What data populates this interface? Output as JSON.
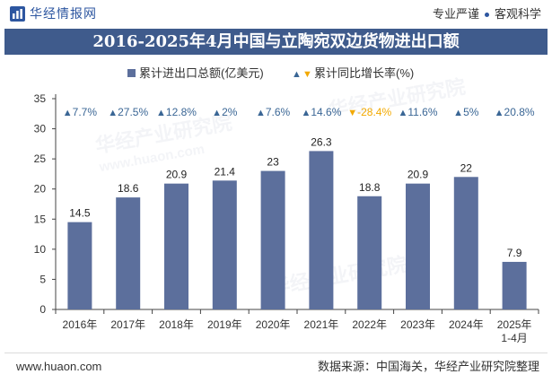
{
  "header": {
    "brand_name": "华经情报网",
    "slogan_left": "专业严谨",
    "slogan_right": "客观科学",
    "logo_icon": "huajing-logo-icon"
  },
  "colors": {
    "title_bar": "#3f5b8c",
    "brand": "#2d56a0"
  },
  "chart_data": {
    "type": "bar",
    "title": "2016-2025年4月中国与立陶宛双边货物进出口额",
    "xlabel": "",
    "ylabel": "",
    "categories": [
      "2016年",
      "2017年",
      "2018年",
      "2019年",
      "2020年",
      "2021年",
      "2022年",
      "2023年",
      "2024年",
      "2025年1-4月"
    ],
    "series": [
      {
        "name": "累计进出口总额(亿美元)",
        "values": [
          14.5,
          18.6,
          20.9,
          21.4,
          23,
          26.3,
          18.8,
          20.9,
          22,
          7.9
        ],
        "color": "#5c6f9c"
      }
    ],
    "growth_rate": {
      "name": "累计同比增长率(%)",
      "values": [
        7.7,
        27.5,
        12.8,
        2,
        7.6,
        14.6,
        -28.4,
        11.6,
        5,
        20.8
      ],
      "unit": "%",
      "up_color": "#3a6695",
      "down_color": "#f2a900",
      "up_icon": "up-triangle-icon",
      "down_icon": "down-triangle-icon"
    },
    "ylim": [
      0,
      35
    ],
    "yticks": [
      0,
      5,
      10,
      15,
      20,
      25,
      30,
      35
    ],
    "grid": false,
    "legend_position": "top"
  },
  "watermark": {
    "text": "华经产业研究院",
    "url": "www.huaon.com"
  },
  "footer": {
    "website": "www.huaon.com",
    "source": "数据来源：中国海关，华经产业研究院整理"
  }
}
